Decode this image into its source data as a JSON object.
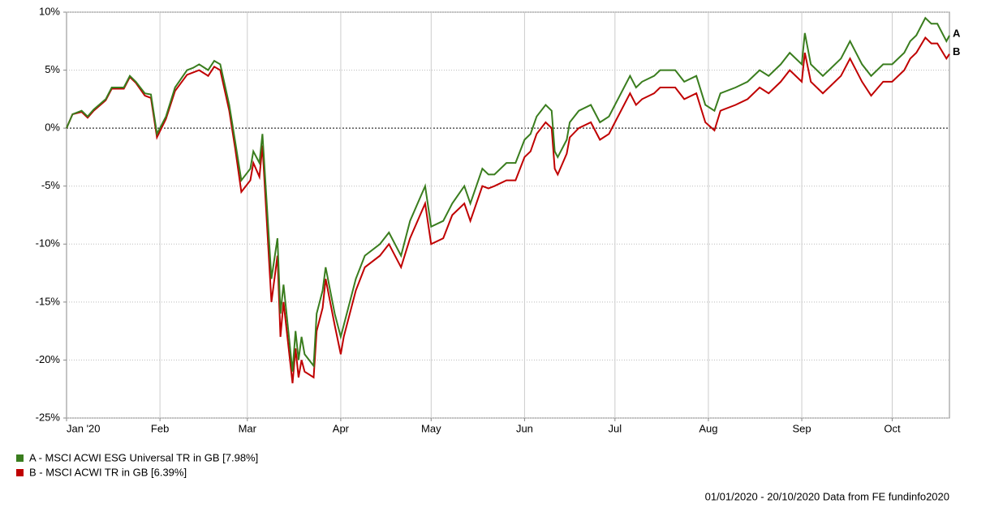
{
  "chart_data": {
    "type": "line",
    "x": [
      "2020-01-01",
      "2020-01-03",
      "2020-01-06",
      "2020-01-08",
      "2020-01-10",
      "2020-01-14",
      "2020-01-16",
      "2020-01-20",
      "2020-01-22",
      "2020-01-24",
      "2020-01-27",
      "2020-01-29",
      "2020-01-31",
      "2020-02-03",
      "2020-02-06",
      "2020-02-10",
      "2020-02-12",
      "2020-02-14",
      "2020-02-17",
      "2020-02-19",
      "2020-02-21",
      "2020-02-24",
      "2020-02-26",
      "2020-02-28",
      "2020-03-02",
      "2020-03-03",
      "2020-03-05",
      "2020-03-06",
      "2020-03-09",
      "2020-03-11",
      "2020-03-12",
      "2020-03-13",
      "2020-03-16",
      "2020-03-17",
      "2020-03-18",
      "2020-03-19",
      "2020-03-20",
      "2020-03-23",
      "2020-03-24",
      "2020-03-26",
      "2020-03-27",
      "2020-03-30",
      "2020-04-01",
      "2020-04-02",
      "2020-04-06",
      "2020-04-09",
      "2020-04-14",
      "2020-04-17",
      "2020-04-21",
      "2020-04-24",
      "2020-04-29",
      "2020-05-01",
      "2020-05-05",
      "2020-05-08",
      "2020-05-12",
      "2020-05-14",
      "2020-05-18",
      "2020-05-20",
      "2020-05-22",
      "2020-05-26",
      "2020-05-29",
      "2020-06-01",
      "2020-06-03",
      "2020-06-05",
      "2020-06-08",
      "2020-06-10",
      "2020-06-11",
      "2020-06-12",
      "2020-06-15",
      "2020-06-16",
      "2020-06-19",
      "2020-06-23",
      "2020-06-26",
      "2020-06-29",
      "2020-07-01",
      "2020-07-06",
      "2020-07-08",
      "2020-07-10",
      "2020-07-14",
      "2020-07-16",
      "2020-07-21",
      "2020-07-24",
      "2020-07-28",
      "2020-07-31",
      "2020-08-03",
      "2020-08-05",
      "2020-08-10",
      "2020-08-14",
      "2020-08-18",
      "2020-08-21",
      "2020-08-25",
      "2020-08-28",
      "2020-09-01",
      "2020-09-02",
      "2020-09-04",
      "2020-09-08",
      "2020-09-10",
      "2020-09-14",
      "2020-09-17",
      "2020-09-21",
      "2020-09-24",
      "2020-09-28",
      "2020-10-01",
      "2020-10-05",
      "2020-10-07",
      "2020-10-09",
      "2020-10-12",
      "2020-10-14",
      "2020-10-16",
      "2020-10-19",
      "2020-10-20"
    ],
    "series": [
      {
        "name": "A - MSCI ACWI ESG Universal TR in GB [7.98%]",
        "label": "A",
        "color": "#3a7d1e",
        "values": [
          0,
          1.2,
          1.5,
          1.0,
          1.6,
          2.5,
          3.5,
          3.5,
          4.5,
          4.0,
          3.0,
          2.9,
          -0.5,
          1.0,
          3.5,
          5.0,
          5.2,
          5.5,
          5.0,
          5.8,
          5.5,
          2.0,
          -1.2,
          -4.5,
          -3.5,
          -2.0,
          -3.0,
          -0.5,
          -13.0,
          -9.5,
          -16.0,
          -13.5,
          -21.0,
          -17.5,
          -20.0,
          -18.0,
          -19.5,
          -20.5,
          -16.0,
          -14.0,
          -12.0,
          -16.0,
          -18.0,
          -17.0,
          -13.0,
          -11.0,
          -10.0,
          -9.0,
          -11.0,
          -8.0,
          -5.0,
          -8.5,
          -8.0,
          -6.5,
          -5.0,
          -6.5,
          -3.5,
          -4.0,
          -4.0,
          -3.0,
          -3.0,
          -1.0,
          -0.5,
          1.0,
          2.0,
          1.5,
          -2.0,
          -2.5,
          -1.0,
          0.5,
          1.5,
          2.0,
          0.5,
          1.0,
          2.0,
          4.5,
          3.5,
          4.0,
          4.5,
          5.0,
          5.0,
          4.0,
          4.5,
          2.0,
          1.5,
          3.0,
          3.5,
          4.0,
          5.0,
          4.5,
          5.5,
          6.5,
          5.5,
          8.2,
          5.5,
          4.5,
          5.0,
          6.0,
          7.5,
          5.5,
          4.5,
          5.5,
          5.5,
          6.5,
          7.5,
          8.0,
          9.5,
          9.0,
          9.0,
          7.5,
          7.98
        ]
      },
      {
        "name": "B - MSCI ACWI TR in GB [6.39%]",
        "label": "B",
        "color": "#c00000",
        "values": [
          0,
          1.2,
          1.4,
          0.9,
          1.5,
          2.4,
          3.4,
          3.4,
          4.4,
          3.9,
          2.8,
          2.6,
          -0.8,
          0.8,
          3.2,
          4.6,
          4.8,
          5.0,
          4.5,
          5.3,
          5.0,
          1.5,
          -1.8,
          -5.5,
          -4.5,
          -3.0,
          -4.2,
          -1.5,
          -15.0,
          -11.0,
          -18.0,
          -15.0,
          -22.0,
          -19.0,
          -21.5,
          -20.0,
          -21.0,
          -21.5,
          -17.5,
          -15.5,
          -13.0,
          -17.0,
          -19.5,
          -18.0,
          -14.0,
          -12.0,
          -11.0,
          -10.0,
          -12.0,
          -9.5,
          -6.5,
          -10.0,
          -9.5,
          -7.5,
          -6.5,
          -8.0,
          -5.0,
          -5.2,
          -5.0,
          -4.5,
          -4.5,
          -2.5,
          -2.0,
          -0.5,
          0.5,
          0.0,
          -3.5,
          -4.0,
          -2.2,
          -0.8,
          0.0,
          0.5,
          -1.0,
          -0.5,
          0.5,
          3.0,
          2.0,
          2.5,
          3.0,
          3.5,
          3.5,
          2.5,
          3.0,
          0.5,
          -0.2,
          1.5,
          2.0,
          2.5,
          3.5,
          3.0,
          4.0,
          5.0,
          4.0,
          6.5,
          4.0,
          3.0,
          3.5,
          4.5,
          6.0,
          4.0,
          2.8,
          4.0,
          4.0,
          5.0,
          6.0,
          6.5,
          7.8,
          7.3,
          7.3,
          6.0,
          6.39
        ]
      }
    ],
    "xlim": [
      "2020-01-01",
      "2020-10-20"
    ],
    "xticks": [
      {
        "value": "2020-01-01",
        "label": "Jan '20"
      },
      {
        "value": "2020-02-01",
        "label": "Feb"
      },
      {
        "value": "2020-03-01",
        "label": "Mar"
      },
      {
        "value": "2020-04-01",
        "label": "Apr"
      },
      {
        "value": "2020-05-01",
        "label": "May"
      },
      {
        "value": "2020-06-01",
        "label": "Jun"
      },
      {
        "value": "2020-07-01",
        "label": "Jul"
      },
      {
        "value": "2020-08-01",
        "label": "Aug"
      },
      {
        "value": "2020-09-01",
        "label": "Sep"
      },
      {
        "value": "2020-10-01",
        "label": "Oct"
      }
    ],
    "ylim": [
      -25,
      10
    ],
    "yticks": [
      {
        "value": -25,
        "label": "-25%"
      },
      {
        "value": -20,
        "label": "-20%"
      },
      {
        "value": -15,
        "label": "-15%"
      },
      {
        "value": -10,
        "label": "-10%"
      },
      {
        "value": -5,
        "label": "-5%"
      },
      {
        "value": 0,
        "label": "0%"
      },
      {
        "value": 5,
        "label": "5%"
      },
      {
        "value": 10,
        "label": "10%"
      }
    ],
    "grid": true,
    "legend": "bottom-left",
    "footer": "01/01/2020 - 20/10/2020 Data from FE fundinfo2020"
  }
}
